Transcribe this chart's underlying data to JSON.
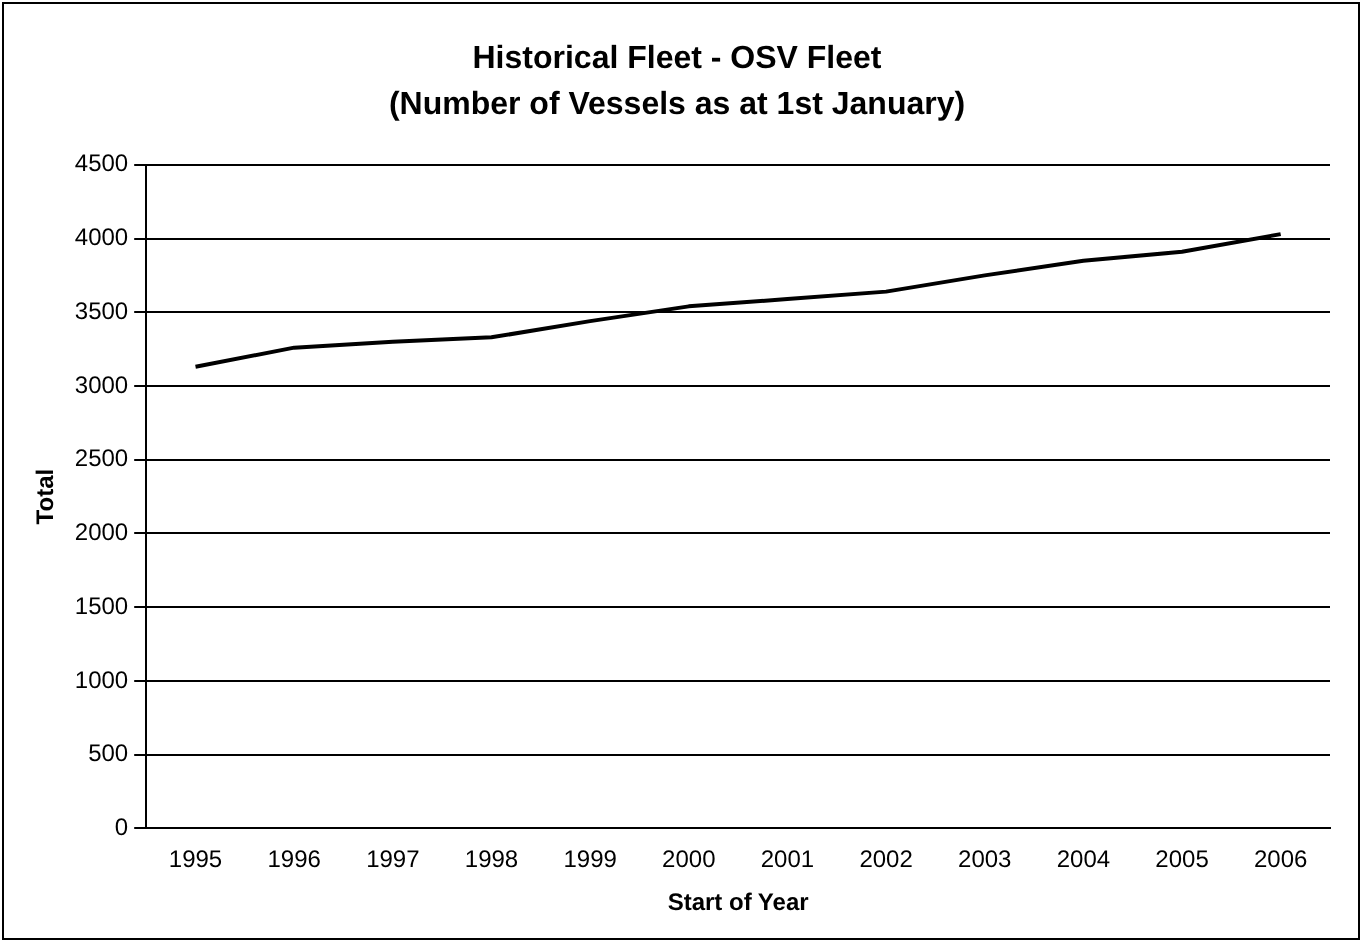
{
  "chart_data": {
    "type": "line",
    "title": "Historical Fleet - OSV Fleet",
    "subtitle": "(Number of Vessels as at 1st January)",
    "xlabel": "Start of Year",
    "ylabel": "Total",
    "categories": [
      "1995",
      "1996",
      "1997",
      "1998",
      "1999",
      "2000",
      "2001",
      "2002",
      "2003",
      "2004",
      "2005",
      "2006"
    ],
    "series": [
      {
        "color": "#000000",
        "values": [
          3130,
          3260,
          3300,
          3330,
          3440,
          3540,
          3590,
          3640,
          3750,
          3850,
          3910,
          4030
        ]
      }
    ],
    "ylim": [
      0,
      4500
    ],
    "yticks": [
      0,
      500,
      1000,
      1500,
      2000,
      2500,
      3000,
      3500,
      4000,
      4500
    ],
    "grid": "y",
    "legend": false,
    "marker": "none",
    "line_style": "solid"
  }
}
